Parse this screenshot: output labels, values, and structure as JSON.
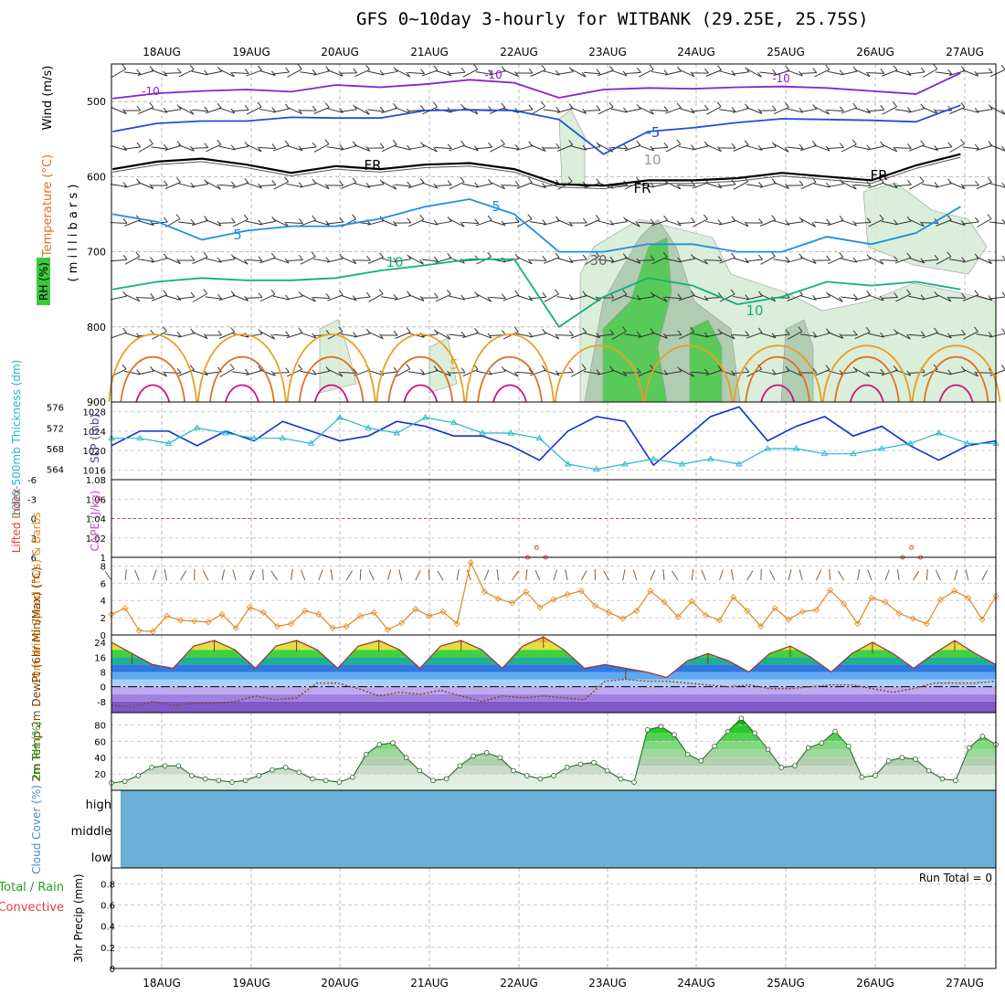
{
  "title": "GFS 0~10day 3-hourly for WITBANK (29.25E, 25.75S)",
  "dates": [
    "18AUG",
    "19AUG",
    "20AUG",
    "21AUG",
    "22AUG",
    "23AUG",
    "24AUG",
    "25AUG",
    "26AUG",
    "27AUG"
  ],
  "colors": {
    "rh_green": "#3cc83c",
    "t_m10": "#8a22c8",
    "t_m5": "#2050d0",
    "t_fr": "#000000",
    "t_5": "#1e90e0",
    "t_10": "#10b080",
    "t_15": "#e8a020",
    "t_20": "#e07020",
    "t_25": "#d01080",
    "slp": "#1030d0",
    "thickness": "#20b8c8",
    "wind10": "#e08820",
    "barb10": "#8b5a2b",
    "rh2m": "#20a020",
    "cloud": "#6baed6",
    "lifted": "#e04040"
  },
  "chart_data": [
    {
      "type": "contour",
      "name": "upper-air",
      "ylabel_wind": "Wind (m/s)",
      "ylabel_temp": "Temperature (°C)",
      "ylabel_rh": "RH (%)",
      "ylabel_units": "( m i l l i b a r s )",
      "y_ticks": [
        500,
        600,
        700,
        800,
        900
      ],
      "ylim": [
        900,
        450
      ],
      "contour_labels": [
        "-10",
        "-10",
        "-10",
        "-5",
        "FR",
        "FR",
        "FR",
        "5",
        "5",
        "10",
        "10",
        "5",
        "30",
        "10"
      ],
      "contours": {
        "m10": [
          [
            0,
            496
          ],
          [
            0.5,
            489
          ],
          [
            1,
            486
          ],
          [
            1.5,
            484
          ],
          [
            2,
            487
          ],
          [
            2.5,
            478
          ],
          [
            3,
            481
          ],
          [
            3.5,
            477
          ],
          [
            4,
            471
          ],
          [
            4.5,
            475
          ],
          [
            5,
            495
          ],
          [
            5.5,
            484
          ],
          [
            6,
            482
          ],
          [
            6.5,
            483
          ],
          [
            7,
            481
          ],
          [
            7.5,
            480
          ],
          [
            8,
            482
          ],
          [
            8.5,
            486
          ],
          [
            9,
            490
          ],
          [
            9.5,
            462
          ]
        ],
        "m5": [
          [
            0,
            540
          ],
          [
            0.5,
            529
          ],
          [
            1,
            526
          ],
          [
            1.5,
            526
          ],
          [
            2,
            521
          ],
          [
            2.5,
            522
          ],
          [
            3,
            522
          ],
          [
            3.5,
            512
          ],
          [
            4,
            511
          ],
          [
            4.5,
            512
          ],
          [
            5,
            524
          ],
          [
            5.5,
            570
          ],
          [
            6,
            540
          ],
          [
            6.5,
            535
          ],
          [
            7,
            528
          ],
          [
            7.5,
            523
          ],
          [
            8,
            524
          ],
          [
            8.5,
            525
          ],
          [
            9,
            527
          ],
          [
            9.5,
            505
          ]
        ],
        "fr": [
          [
            0,
            590
          ],
          [
            0.5,
            580
          ],
          [
            1,
            576
          ],
          [
            1.5,
            584
          ],
          [
            2,
            595
          ],
          [
            2.5,
            586
          ],
          [
            3,
            590
          ],
          [
            3.5,
            584
          ],
          [
            4,
            582
          ],
          [
            4.5,
            590
          ],
          [
            5,
            610
          ],
          [
            5.5,
            612
          ],
          [
            6,
            605
          ],
          [
            6.5,
            605
          ],
          [
            7,
            602
          ],
          [
            7.5,
            595
          ],
          [
            8,
            600
          ],
          [
            8.5,
            605
          ],
          [
            9,
            585
          ],
          [
            9.5,
            570
          ]
        ],
        "p5": [
          [
            0,
            650
          ],
          [
            0.5,
            660
          ],
          [
            1,
            684
          ],
          [
            1.5,
            672
          ],
          [
            2,
            666
          ],
          [
            2.5,
            666
          ],
          [
            3,
            656
          ],
          [
            3.5,
            640
          ],
          [
            4,
            630
          ],
          [
            4.5,
            650
          ],
          [
            5,
            700
          ],
          [
            5.5,
            700
          ],
          [
            6,
            690
          ],
          [
            6.5,
            690
          ],
          [
            7,
            700
          ],
          [
            7.5,
            700
          ],
          [
            8,
            680
          ],
          [
            8.5,
            690
          ],
          [
            9,
            675
          ],
          [
            9.5,
            640
          ]
        ],
        "p10": [
          [
            0,
            750
          ],
          [
            0.5,
            740
          ],
          [
            1,
            735
          ],
          [
            1.5,
            738
          ],
          [
            2,
            738
          ],
          [
            2.5,
            735
          ],
          [
            3,
            725
          ],
          [
            3.5,
            718
          ],
          [
            4,
            710
          ],
          [
            4.5,
            710
          ],
          [
            5,
            800
          ],
          [
            5.5,
            760
          ],
          [
            6,
            735
          ],
          [
            6.5,
            745
          ],
          [
            7,
            770
          ],
          [
            7.5,
            760
          ],
          [
            8,
            740
          ],
          [
            8.5,
            745
          ],
          [
            9,
            740
          ],
          [
            9.5,
            750
          ]
        ]
      },
      "rh_shading": "present"
    },
    {
      "type": "line",
      "name": "slp-thickness",
      "ylabel_left": "1000-500mb Thickness (dm)",
      "ylabel_right": "SLP (mb)",
      "left_ticks": [
        564,
        568,
        572,
        576
      ],
      "right_ticks": [
        1016,
        1020,
        1024,
        1028
      ],
      "slp_range": [
        1014,
        1030
      ],
      "thk_range": [
        562,
        577
      ],
      "series": [
        {
          "name": "SLP",
          "values": [
            1021,
            1024,
            1024,
            1021,
            1024,
            1022,
            1026,
            1024,
            1022,
            1023,
            1026,
            1025,
            1023,
            1023,
            1021,
            1018,
            1024,
            1027,
            1026,
            1017,
            1022,
            1027,
            1029,
            1022,
            1025,
            1027,
            1023,
            1025,
            1021,
            1018,
            1021,
            1022
          ]
        },
        {
          "name": "Thickness",
          "values": [
            570,
            570,
            569,
            572,
            571,
            570,
            570,
            569,
            574,
            572,
            571,
            574,
            573,
            571,
            571,
            570,
            565,
            564,
            565,
            566,
            565,
            566,
            565,
            568,
            568,
            567,
            567,
            568,
            569,
            571,
            569,
            569
          ]
        }
      ]
    },
    {
      "type": "line",
      "name": "cape-li",
      "ylabel_left": "Lifted Index",
      "ylabel_right": "CAPE (J/kg)",
      "left_ticks": [
        "-6",
        "-3",
        "0",
        "3",
        "6"
      ],
      "right_ticks": [
        "1.08",
        "1.06",
        "1.04",
        "1.02",
        "1"
      ],
      "ylim_right": [
        1,
        1.08
      ],
      "series": [
        {
          "name": "CAPE",
          "values": [
            [
              4.65,
              1
            ],
            [
              4.75,
              1.01
            ],
            [
              4.85,
              1
            ],
            [
              8.85,
              1
            ],
            [
              8.95,
              1.01
            ],
            [
              9.05,
              1
            ]
          ]
        }
      ]
    },
    {
      "type": "line",
      "name": "wind10m",
      "ylabel": "10m Wind Speed (m/s) & Barbs",
      "y_ticks": [
        0,
        2,
        4,
        6,
        8
      ],
      "ylim": [
        0,
        9
      ],
      "series": [
        {
          "name": "Speed",
          "values": [
            2.4,
            3.1,
            0.5,
            0.4,
            2.2,
            1.7,
            1.6,
            1.5,
            2.4,
            0.8,
            3.2,
            2.6,
            1.0,
            1.3,
            2.8,
            2.4,
            0.8,
            1.0,
            2.2,
            2.6,
            0.6,
            1.4,
            3.0,
            2.2,
            2.7,
            1.3,
            8.4,
            5.0,
            4.2,
            3.7,
            5.0,
            3.2,
            4.1,
            4.7,
            5.1,
            3.4,
            2.6,
            1.9,
            2.8,
            5.1,
            3.8,
            2.1,
            3.9,
            2.3,
            1.7,
            4.4,
            2.8,
            1.0,
            3.1,
            1.8,
            2.7,
            2.9,
            5.2,
            3.6,
            1.3,
            4.3,
            3.8,
            2.5,
            1.9,
            1.3,
            4.1,
            5.1,
            4.3,
            1.8,
            4.5
          ]
        }
      ]
    },
    {
      "type": "area",
      "name": "temp-dewpt",
      "ylabel": "2m Temp 2m DewPt (6hr Min/Max) (°C)",
      "y_ticks": [
        -8,
        0,
        8,
        16,
        24
      ],
      "ylim": [
        -14,
        28
      ],
      "series": [
        {
          "name": "Temp",
          "values": [
            24,
            18,
            12,
            10,
            22,
            25,
            20,
            10,
            22,
            25,
            20,
            10,
            22,
            25,
            20,
            10,
            22,
            25,
            20,
            10,
            22,
            27,
            20,
            10,
            12,
            10,
            8,
            5,
            14,
            18,
            14,
            8,
            18,
            22,
            16,
            8,
            18,
            24,
            18,
            10,
            18,
            25,
            18,
            12
          ]
        },
        {
          "name": "DewPt",
          "values": [
            -10,
            -11,
            -8,
            -10,
            -9,
            -9,
            -8,
            -5,
            -7,
            -6,
            2,
            2,
            -1,
            -5,
            -3,
            -4,
            -2,
            -5,
            -8,
            -5,
            -6,
            -5,
            -6,
            -7,
            3,
            4,
            3,
            3,
            2,
            1,
            0,
            1,
            -1,
            -1,
            0,
            1,
            1,
            -1,
            -3,
            -1,
            2,
            2,
            2,
            3
          ]
        }
      ]
    },
    {
      "type": "area",
      "name": "rh2m",
      "ylabel": "2m RH (%)",
      "y_ticks": [
        20,
        40,
        60,
        80
      ],
      "ylim": [
        0,
        95
      ],
      "series": [
        {
          "name": "RH",
          "values": [
            9,
            11,
            18,
            28,
            30,
            30,
            18,
            14,
            12,
            10,
            12,
            18,
            25,
            28,
            22,
            14,
            12,
            10,
            16,
            44,
            56,
            58,
            40,
            24,
            12,
            14,
            30,
            42,
            46,
            40,
            24,
            18,
            14,
            18,
            28,
            32,
            34,
            24,
            14,
            10,
            74,
            78,
            68,
            44,
            36,
            54,
            72,
            88,
            70,
            50,
            28,
            30,
            52,
            58,
            72,
            54,
            16,
            18,
            36,
            40,
            38,
            24,
            14,
            12,
            52,
            66,
            56
          ]
        }
      ]
    },
    {
      "type": "heatmap",
      "name": "cloud-cover",
      "ylabel": "Cloud Cover (%)",
      "levels": [
        "high",
        "middle",
        "low"
      ]
    },
    {
      "type": "bar",
      "name": "precip",
      "ylabel_left": "Total / Rain",
      "ylabel_left2": "Convective",
      "ylabel": "3hr Precip (mm)",
      "y_ticks": [
        "0",
        "0.2",
        "0.4",
        "0.6",
        "0.8"
      ],
      "ylim": [
        0,
        0.95
      ],
      "annotation": "Run Total = 0",
      "values": []
    }
  ]
}
